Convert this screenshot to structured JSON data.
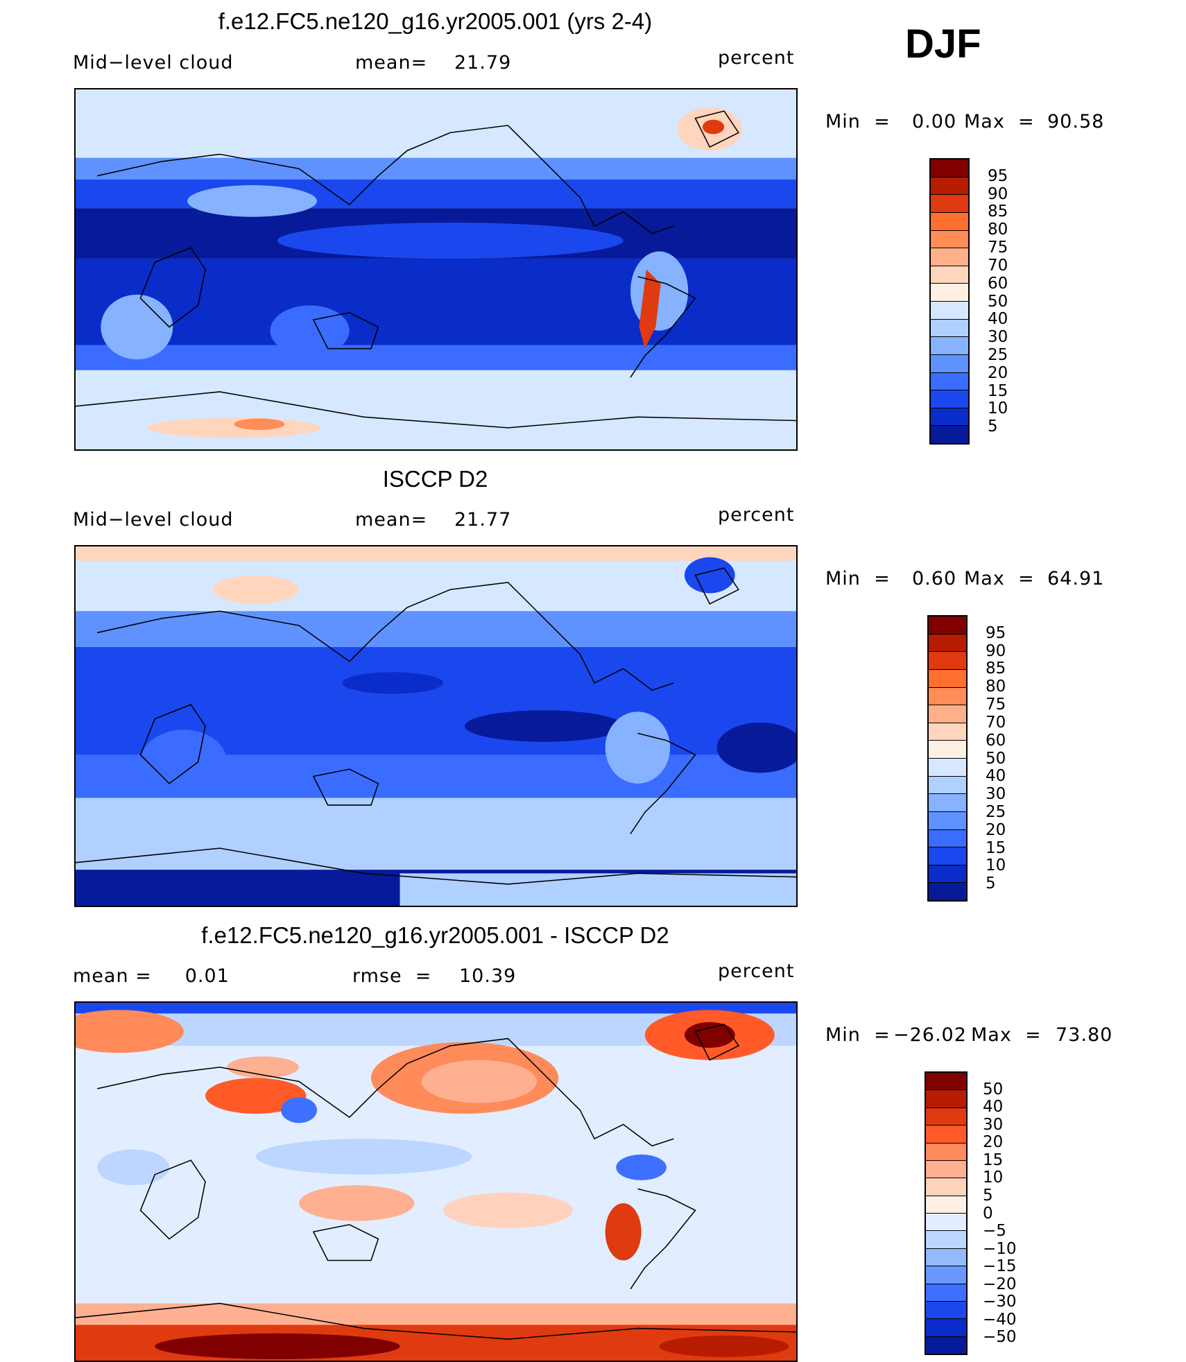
{
  "season": "DJF",
  "chart_data": [
    {
      "type": "heatmap",
      "id": "model",
      "title": "f.e12.FC5.ne120_g16.yr2005.001 (yrs 2-4)",
      "left_label": "Mid−level cloud",
      "stat_label": "mean=",
      "stat_value": "21.79",
      "units": "percent",
      "min_label": "Min  =",
      "min_value": "0.00",
      "max_label": "Max  =",
      "max_value": "90.58",
      "min": 0.0,
      "max": 90.58,
      "levels": [
        "95",
        "90",
        "85",
        "80",
        "75",
        "70",
        "60",
        "50",
        "40",
        "30",
        "25",
        "20",
        "15",
        "10",
        "5"
      ],
      "colors": [
        "#800000",
        "#b81c00",
        "#e03a10",
        "#ff6f30",
        "#ff8d58",
        "#ffb08a",
        "#ffd5be",
        "#fff0e4",
        "#d6e8ff",
        "#b0d0ff",
        "#86b2ff",
        "#5f92ff",
        "#3a6cff",
        "#1a48ee",
        "#0a2cc8",
        "#061a9a"
      ]
    },
    {
      "type": "heatmap",
      "id": "obs",
      "title": "ISCCP D2",
      "left_label": "Mid−level cloud",
      "stat_label": "mean=",
      "stat_value": "21.77",
      "units": "percent",
      "min_label": "Min  =",
      "min_value": "0.60",
      "max_label": "Max  =",
      "max_value": "64.91",
      "min": 0.6,
      "max": 64.91,
      "levels": [
        "95",
        "90",
        "85",
        "80",
        "75",
        "70",
        "60",
        "50",
        "40",
        "30",
        "25",
        "20",
        "15",
        "10",
        "5"
      ],
      "colors": [
        "#800000",
        "#b81c00",
        "#e03a10",
        "#ff6f30",
        "#ff8d58",
        "#ffb08a",
        "#ffd5be",
        "#fff0e4",
        "#d6e8ff",
        "#b0d0ff",
        "#86b2ff",
        "#5f92ff",
        "#3a6cff",
        "#1a48ee",
        "#0a2cc8",
        "#061a9a"
      ]
    },
    {
      "type": "heatmap",
      "id": "diff",
      "title": "f.e12.FC5.ne120_g16.yr2005.001 - ISCCP D2",
      "left_label": "mean =     0.01",
      "stat_label": "rmse  =",
      "stat_value": "10.39",
      "units": "percent",
      "min_label": "Min  =",
      "min_value": "−26.02",
      "max_label": "Max  =",
      "max_value": "73.80",
      "min": -26.02,
      "max": 73.8,
      "levels": [
        "50",
        "40",
        "30",
        "20",
        "15",
        "10",
        "5",
        "0",
        "−5",
        "−10",
        "−15",
        "−20",
        "−30",
        "−40",
        "−50"
      ],
      "colors": [
        "#800000",
        "#b81c00",
        "#e03a10",
        "#ff5a28",
        "#ff8a5a",
        "#ffb090",
        "#ffd2be",
        "#fff0e6",
        "#e2eeff",
        "#bcd6ff",
        "#94baff",
        "#6a98ff",
        "#3e70ff",
        "#1a48ee",
        "#0a2cc8",
        "#061a9a"
      ]
    }
  ]
}
